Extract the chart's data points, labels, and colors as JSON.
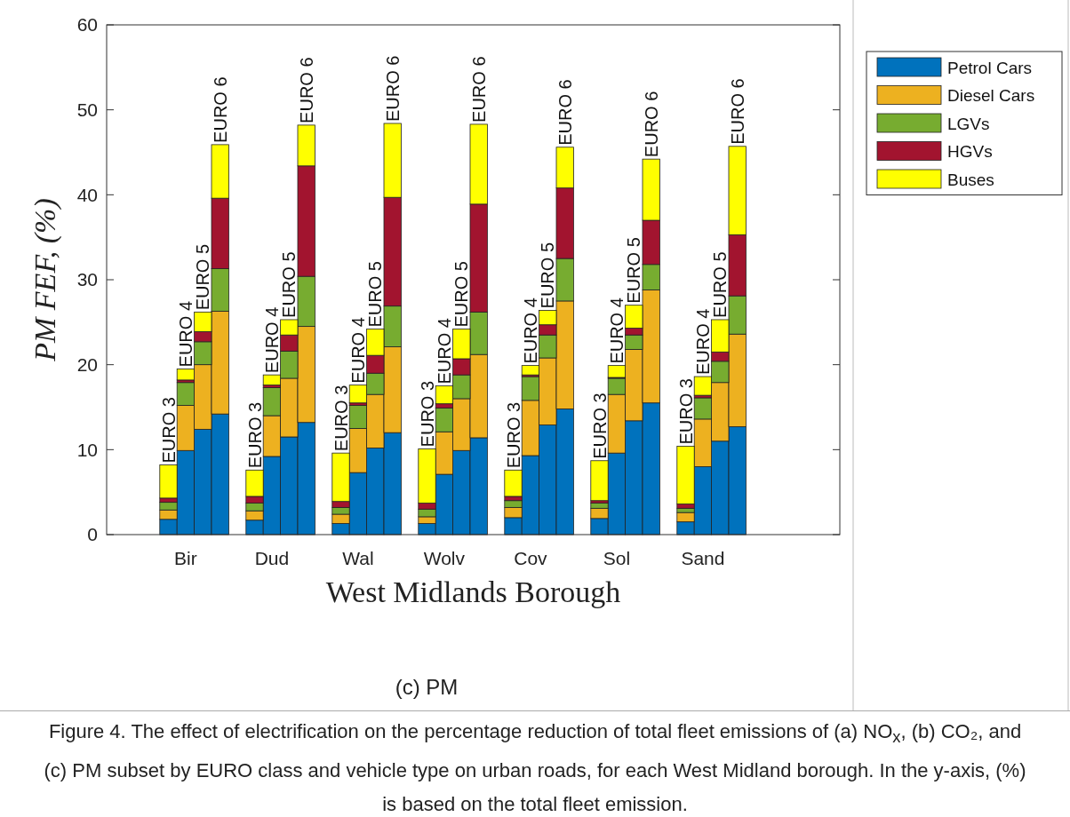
{
  "chart_data": {
    "type": "bar",
    "stacked": true,
    "categories": [
      null,
      "Bir",
      null,
      null,
      null,
      null,
      "Dud",
      null,
      null,
      null,
      null,
      "Wal",
      null,
      null,
      null,
      null,
      "Wolv",
      null,
      null,
      null,
      null,
      "Cov",
      null,
      null,
      null,
      null,
      "Sol",
      null,
      null,
      null,
      null,
      "Sand",
      null,
      null
    ],
    "xlabel": "West Midlands Borough",
    "ylabel": "PM FEF, (%)",
    "ylim": [
      0,
      60
    ],
    "yticks": [
      0,
      10,
      20,
      30,
      40,
      50,
      60
    ],
    "legend": "top right",
    "series": [
      {
        "name": "Petrol Cars",
        "color": "#0072bd",
        "values": [
          1.8,
          9.9,
          12.4,
          14.2,
          null,
          1.7,
          9.2,
          11.5,
          13.2,
          null,
          1.3,
          7.3,
          10.2,
          12.0,
          null,
          1.3,
          7.1,
          9.9,
          11.4,
          null,
          2.0,
          9.3,
          12.9,
          14.8,
          null,
          1.9,
          9.6,
          13.4,
          15.5,
          null,
          1.5,
          8.0,
          11.0,
          12.7
        ]
      },
      {
        "name": "Diesel Cars",
        "color": "#edb120",
        "values": [
          1.1,
          5.3,
          7.6,
          12.1,
          null,
          1.1,
          4.8,
          6.9,
          11.3,
          null,
          1.1,
          5.2,
          6.3,
          10.1,
          null,
          0.8,
          5.0,
          6.1,
          9.8,
          null,
          1.2,
          6.5,
          7.9,
          12.7,
          null,
          1.2,
          6.9,
          8.4,
          13.3,
          null,
          1.1,
          5.6,
          6.9,
          10.9
        ]
      },
      {
        "name": "LGVs",
        "color": "#77ac30",
        "values": [
          0.9,
          2.7,
          2.7,
          5.0,
          null,
          0.9,
          3.3,
          3.2,
          5.9,
          null,
          0.8,
          2.7,
          2.5,
          4.8,
          null,
          0.9,
          2.8,
          2.8,
          5.0,
          null,
          0.8,
          2.8,
          2.7,
          5.0,
          null,
          0.6,
          1.9,
          1.7,
          3.0,
          null,
          0.5,
          2.5,
          2.5,
          4.5
        ]
      },
      {
        "name": "HGVs",
        "color": "#a2142f",
        "values": [
          0.5,
          0.3,
          1.2,
          8.3,
          null,
          0.8,
          0.3,
          1.9,
          13.0,
          null,
          0.7,
          0.3,
          2.1,
          12.8,
          null,
          0.7,
          0.5,
          1.9,
          12.7,
          null,
          0.5,
          0.2,
          1.2,
          8.3,
          null,
          0.3,
          0.1,
          0.8,
          5.2,
          null,
          0.5,
          0.3,
          1.1,
          7.2
        ]
      },
      {
        "name": "Buses",
        "color": "#ffff00",
        "values": [
          3.9,
          1.3,
          2.3,
          6.3,
          null,
          3.1,
          1.2,
          1.8,
          4.8,
          null,
          5.7,
          2.1,
          3.1,
          8.7,
          null,
          6.4,
          2.1,
          3.5,
          9.4,
          null,
          3.1,
          1.1,
          1.7,
          4.8,
          null,
          4.7,
          1.4,
          2.7,
          7.2,
          null,
          6.8,
          2.2,
          3.8,
          10.4
        ],
        "value_labels": [
          "EURO 3",
          "EURO 4",
          "EURO 5",
          "EURO 6",
          null,
          "EURO 3",
          "EURO 4",
          "EURO 5",
          "EURO 6",
          null,
          "EURO 3",
          "EURO 4",
          "EURO 5",
          "EURO 6",
          null,
          "EURO 3",
          "EURO 4",
          "EURO 5",
          "EURO 6",
          null,
          "EURO 3",
          "EURO 4",
          "EURO 5",
          "EURO 6",
          null,
          "EURO 3",
          "EURO 4",
          "EURO 5",
          "EURO 6",
          null,
          "EURO 3",
          "EURO 4",
          "EURO 5",
          "EURO 6"
        ]
      }
    ],
    "annotations": [
      "(c)  PM",
      "Figure 4. The effect of electrification on the percentage reduction of total fleet emissions of (a) NO$_{x}$, (b) CO₂, and (c) PM subset by EURO class and vehicle type on urban roads, for each West Midland borough. In the y-axis, (%) is based on the total fleet emission."
    ]
  }
}
